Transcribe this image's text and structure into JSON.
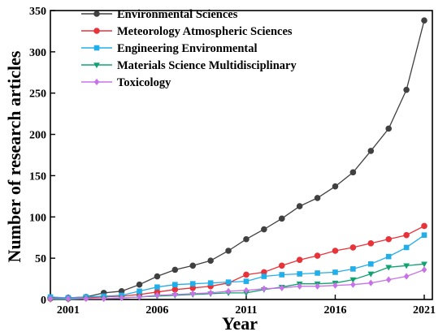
{
  "chart_data": {
    "type": "line",
    "xlabel": "Year",
    "ylabel": "Number of research articles",
    "xlim": [
      2000,
      2021
    ],
    "ylim": [
      0,
      350
    ],
    "x_ticks": [
      2001,
      2006,
      2011,
      2016,
      2021
    ],
    "y_ticks": [
      0,
      50,
      100,
      150,
      200,
      250,
      300,
      350
    ],
    "grid": false,
    "legend_position": "top-left",
    "x": [
      2000,
      2001,
      2002,
      2003,
      2004,
      2005,
      2006,
      2007,
      2008,
      2009,
      2010,
      2011,
      2012,
      2013,
      2014,
      2015,
      2016,
      2017,
      2018,
      2019,
      2020,
      2021
    ],
    "series": [
      {
        "name": "Environmental Sciences",
        "color": "#404040",
        "marker": "circle",
        "values": [
          2,
          2,
          3,
          8,
          10,
          18,
          28,
          36,
          41,
          47,
          59,
          73,
          85,
          98,
          113,
          123,
          137,
          154,
          180,
          207,
          254,
          338
        ]
      },
      {
        "name": "Meteorology Atmospheric Sciences",
        "color": "#e8333a",
        "marker": "circle",
        "values": [
          1,
          1,
          2,
          3,
          4,
          6,
          9,
          12,
          14,
          16,
          20,
          30,
          33,
          41,
          48,
          53,
          59,
          63,
          68,
          73,
          78,
          89
        ]
      },
      {
        "name": "Engineering Environmental",
        "color": "#22aee8",
        "marker": "square",
        "values": [
          3,
          2,
          3,
          4,
          5,
          10,
          15,
          18,
          19,
          20,
          21,
          22,
          28,
          30,
          31,
          32,
          33,
          37,
          43,
          52,
          63,
          78
        ]
      },
      {
        "name": "Materials Science Multidisciplinary",
        "color": "#11a36f",
        "marker": "triangle-down",
        "values": [
          0,
          0,
          1,
          1,
          2,
          3,
          4,
          5,
          6,
          7,
          8,
          8,
          12,
          15,
          19,
          19,
          20,
          24,
          31,
          39,
          41,
          43
        ]
      },
      {
        "name": "Toxicology",
        "color": "#c872e8",
        "marker": "diamond",
        "values": [
          1,
          1,
          1,
          1,
          2,
          3,
          5,
          6,
          7,
          8,
          10,
          11,
          13,
          14,
          16,
          16,
          17,
          18,
          20,
          24,
          28,
          36
        ]
      }
    ]
  }
}
